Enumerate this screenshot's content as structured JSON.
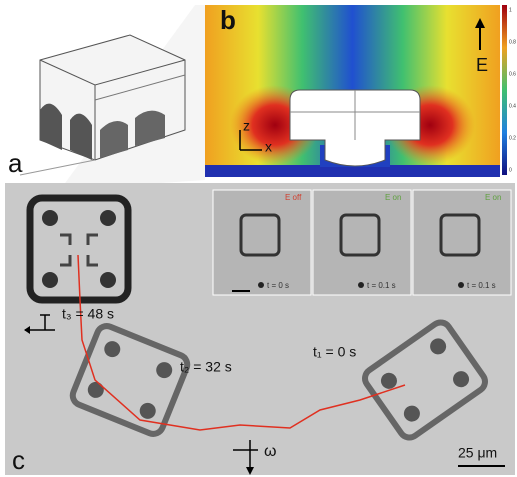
{
  "panels": {
    "a": {
      "label": "a"
    },
    "b": {
      "label": "b",
      "field_label": "E",
      "axis_labels": [
        "z",
        "x"
      ],
      "colorbar_ticks": [
        "1",
        "0.8",
        "0.6",
        "0.4",
        "0.2",
        "0"
      ]
    },
    "c": {
      "label": "c",
      "times": [
        "t₃ = 48 s",
        "t₂ = 32 s",
        "t₁ = 0 s"
      ],
      "rotation_label": "ω",
      "scale_bar": "25 μm",
      "insets": [
        {
          "state": "E off",
          "time": "t = 0 s"
        },
        {
          "state": "E on",
          "time": "t = 0.1 s"
        },
        {
          "state": "E on",
          "time": "t = 0.1 s"
        }
      ]
    }
  }
}
